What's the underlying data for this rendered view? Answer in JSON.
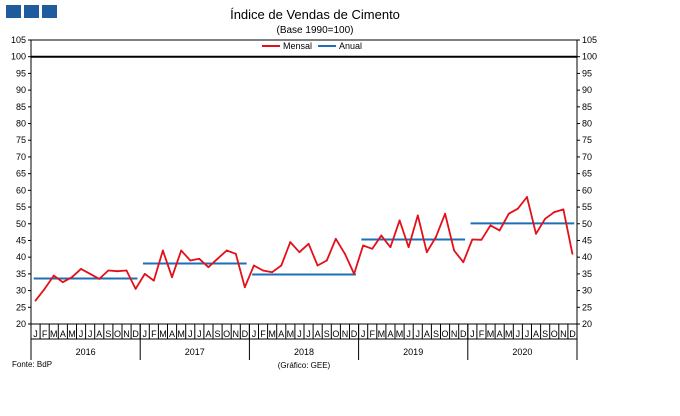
{
  "logo": {
    "colors": [
      "#1f5c9e",
      "#1f5c9e",
      "#1f5c9e"
    ]
  },
  "source_note": "Fonte: BdP",
  "credit_note": "(Gráfico: GEE)",
  "chart_data": {
    "type": "line",
    "title": "Índice de Vendas de Cimento",
    "subtitle": "(Base 1990=100)",
    "xlabel": "",
    "ylabel": "",
    "ylim": [
      20,
      105
    ],
    "yticks": [
      20,
      25,
      30,
      35,
      40,
      45,
      50,
      55,
      60,
      65,
      70,
      75,
      80,
      85,
      90,
      95,
      100,
      105
    ],
    "month_labels": [
      "J",
      "F",
      "M",
      "A",
      "M",
      "J",
      "J",
      "A",
      "S",
      "O",
      "N",
      "D"
    ],
    "years": [
      "2016",
      "2017",
      "2018",
      "2019",
      "2020"
    ],
    "reference_line": {
      "value": 100,
      "color": "#000000"
    },
    "legend": {
      "position": "top-center"
    },
    "series": [
      {
        "name": "Mensal",
        "color": "#e3101a",
        "values": [
          27.0,
          30.5,
          34.5,
          32.5,
          34.0,
          36.5,
          35.0,
          33.5,
          36.0,
          35.8,
          36.0,
          30.5,
          35.0,
          33.0,
          42.0,
          34.0,
          42.0,
          39.0,
          39.5,
          37.0,
          39.5,
          42.0,
          41.0,
          31.0,
          37.5,
          36.0,
          35.5,
          37.5,
          44.5,
          41.5,
          44.0,
          37.5,
          39.0,
          45.5,
          41.0,
          35.0,
          43.5,
          42.5,
          46.5,
          43.0,
          51.0,
          43.0,
          52.5,
          41.5,
          46.0,
          53.0,
          42.0,
          38.5,
          45.3,
          45.2,
          49.5,
          48.0,
          53.0,
          54.5,
          58.0,
          47.0,
          51.5,
          53.5,
          54.3,
          41.0
        ]
      },
      {
        "name": "Anual",
        "color": "#1f6fb4",
        "values": [
          33.6,
          38.1,
          34.8,
          45.3,
          50.1
        ]
      }
    ]
  }
}
